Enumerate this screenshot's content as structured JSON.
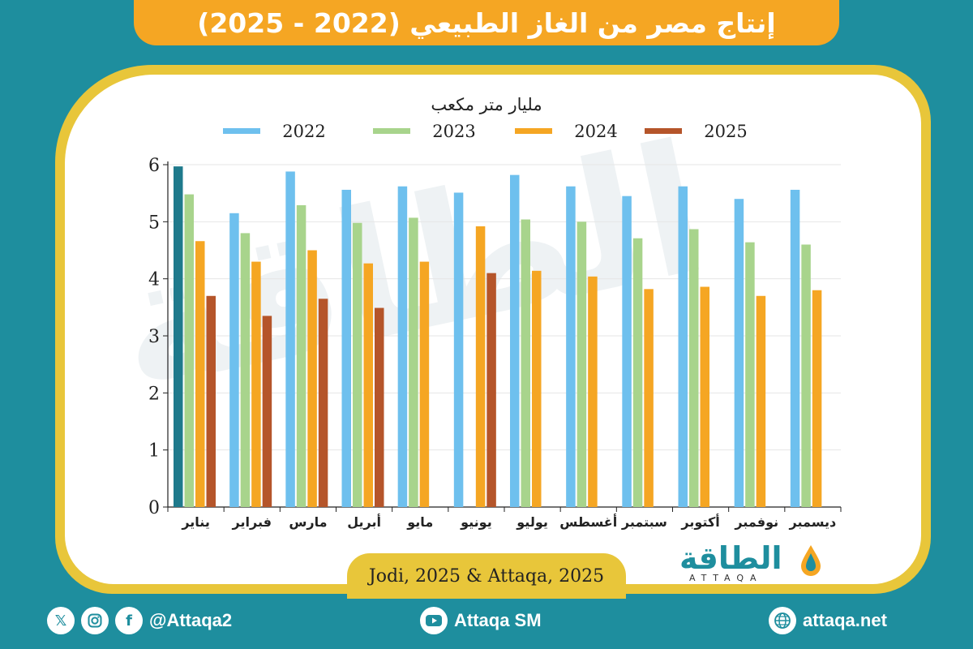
{
  "header": {
    "title": "إنتاج مصر من الغاز الطبيعي (2022 - 2025)"
  },
  "watermark": {
    "text": "الطاقة"
  },
  "chart_data": {
    "type": "bar",
    "title": "مليار متر مكعب",
    "xlabel": "",
    "ylabel": "",
    "ylim": [
      0,
      6
    ],
    "yticks": [
      0,
      1,
      2,
      3,
      4,
      5,
      6
    ],
    "categories": [
      "يناير",
      "فبراير",
      "مارس",
      "أبريل",
      "مايو",
      "يونيو",
      "يوليو",
      "أغسطس",
      "سبتمبر",
      "أكتوبر",
      "نوفمبر",
      "ديسمبر"
    ],
    "series": [
      {
        "name": "2022",
        "color": "#6ec0ee",
        "values": [
          5.97,
          5.15,
          5.88,
          5.56,
          5.62,
          5.51,
          5.82,
          5.62,
          5.45,
          5.62,
          5.4,
          5.56
        ]
      },
      {
        "name": "2023",
        "color": "#a8d48c",
        "values": [
          5.48,
          4.8,
          5.29,
          4.98,
          5.07,
          null,
          5.04,
          5.0,
          4.71,
          4.87,
          4.64,
          4.6
        ]
      },
      {
        "name": "2024",
        "color": "#f5a623",
        "values": [
          4.66,
          4.3,
          4.5,
          4.27,
          4.3,
          4.92,
          4.14,
          4.04,
          3.82,
          3.86,
          3.7,
          3.8
        ]
      },
      {
        "name": "2025",
        "color": "#b5552a",
        "values": [
          3.7,
          3.35,
          3.65,
          3.49,
          null,
          4.1,
          null,
          null,
          null,
          null,
          null,
          null
        ]
      }
    ],
    "highlight": {
      "category_index": 0,
      "series_index": 0,
      "color": "#1f7a8c"
    },
    "legend_position": "top"
  },
  "source": {
    "text": "Jodi, 2025 & Attaqa, 2025"
  },
  "logo": {
    "arabic": "الطاقة",
    "english": "ATTAQA"
  },
  "footer": {
    "social_handle": "@Attaqa2",
    "youtube": "Attaqa SM",
    "website": "attaqa.net",
    "icons": [
      "x-icon",
      "instagram-icon",
      "facebook-icon",
      "youtube-icon",
      "globe-icon"
    ]
  }
}
